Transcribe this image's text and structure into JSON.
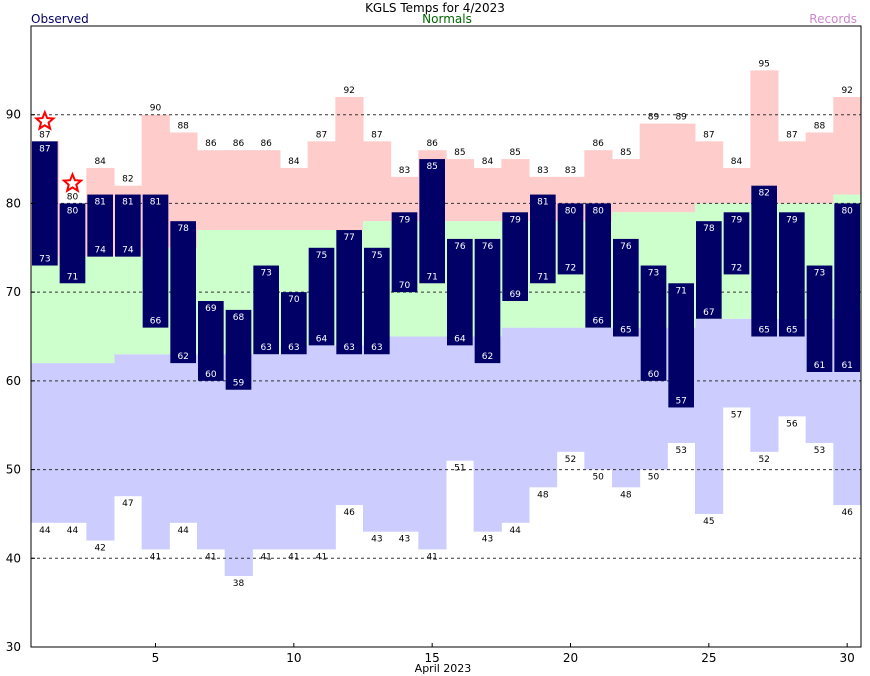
{
  "chart_data": {
    "type": "bar",
    "title": "KGLS Temps for 4/2023",
    "legend": {
      "observed": "Observed",
      "normals": "Normals",
      "records": "Records"
    },
    "colors": {
      "observed": "#000066",
      "normals": "#ccffcc",
      "records_high": "#ffcccc",
      "records_low": "#ccccff",
      "observed_legend": "#000066",
      "normals_legend": "#006600",
      "records_legend": "#cc88cc",
      "record_star": "#ff0000",
      "grid": "#333333"
    },
    "xlabel": "April 2023",
    "x_ticks": [
      5,
      10,
      15,
      20,
      25,
      30
    ],
    "ylim": [
      30,
      100
    ],
    "y_ticks": [
      30,
      40,
      50,
      60,
      70,
      80,
      90
    ],
    "grid_lines": [
      40,
      50,
      60,
      70,
      80,
      90
    ],
    "days": [
      1,
      2,
      3,
      4,
      5,
      6,
      7,
      8,
      9,
      10,
      11,
      12,
      13,
      14,
      15,
      16,
      17,
      18,
      19,
      20,
      21,
      22,
      23,
      24,
      25,
      26,
      27,
      28,
      29,
      30
    ],
    "observed_high": [
      87,
      80,
      81,
      81,
      81,
      78,
      69,
      68,
      73,
      70,
      75,
      77,
      75,
      79,
      85,
      76,
      76,
      79,
      81,
      80,
      80,
      76,
      73,
      71,
      78,
      79,
      82,
      79,
      73,
      80
    ],
    "observed_low": [
      73,
      71,
      74,
      74,
      66,
      62,
      60,
      59,
      63,
      63,
      64,
      63,
      63,
      70,
      71,
      64,
      62,
      69,
      71,
      72,
      66,
      65,
      60,
      57,
      67,
      72,
      65,
      65,
      61,
      61
    ],
    "normal_high": [
      73,
      74,
      74,
      74,
      75,
      75,
      77,
      77,
      77,
      77,
      77,
      77,
      78,
      78,
      78,
      78,
      78,
      78,
      78,
      78,
      78,
      79,
      79,
      79,
      80,
      80,
      80,
      80,
      80,
      81
    ],
    "normal_low": [
      62,
      62,
      62,
      63,
      63,
      63,
      63,
      63,
      63,
      64,
      64,
      64,
      65,
      65,
      65,
      65,
      65,
      66,
      66,
      66,
      66,
      66,
      66,
      66,
      67,
      67,
      67,
      67,
      67,
      68
    ],
    "record_high": [
      87,
      80,
      84,
      82,
      90,
      88,
      86,
      86,
      86,
      84,
      87,
      92,
      87,
      83,
      86,
      85,
      84,
      85,
      83,
      83,
      86,
      85,
      89,
      89,
      87,
      84,
      95,
      87,
      88,
      92
    ],
    "record_low": [
      44,
      44,
      42,
      47,
      41,
      44,
      41,
      38,
      41,
      41,
      41,
      46,
      43,
      43,
      41,
      51,
      43,
      44,
      48,
      52,
      50,
      48,
      50,
      53,
      45,
      57,
      52,
      56,
      53,
      46
    ],
    "record_high_set_days": [
      1,
      2
    ]
  }
}
